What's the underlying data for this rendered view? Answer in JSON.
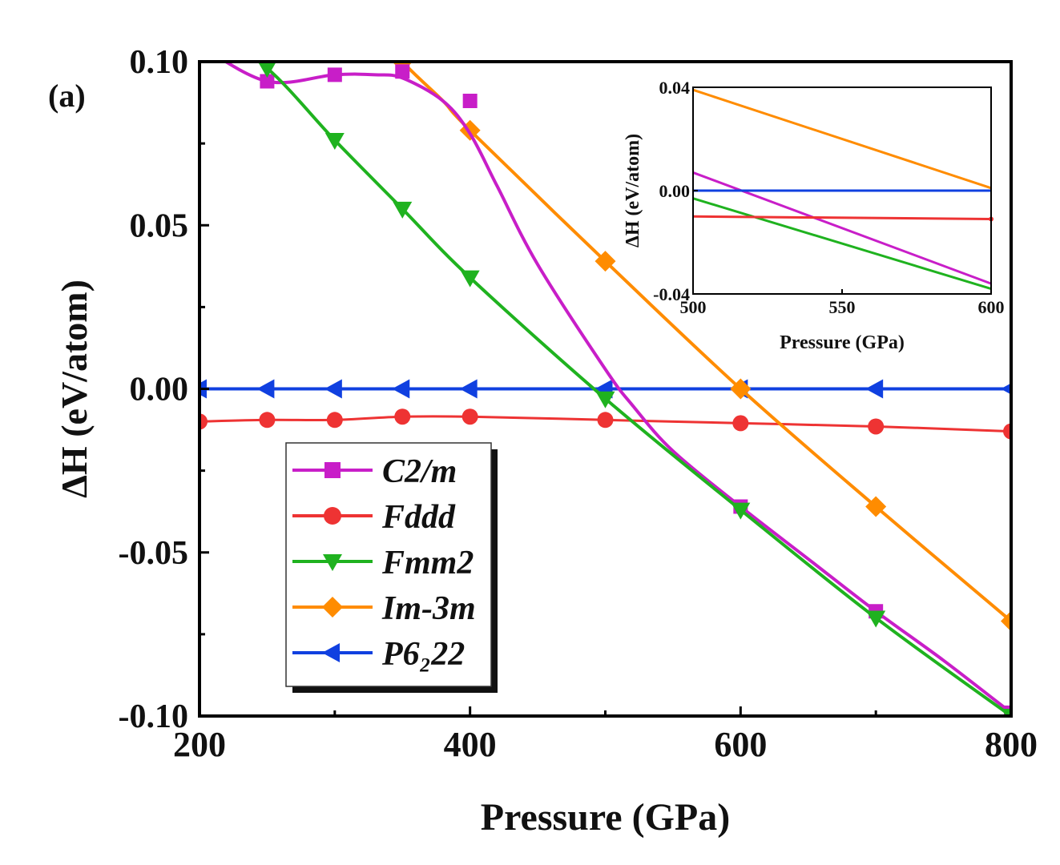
{
  "panel_label": "(a)",
  "colors": {
    "C2/m": "#c81ec8",
    "Fddd": "#ee3333",
    "Fmm2": "#1fb21f",
    "Im-3m": "#ff8c00",
    "P6222": "#1040e0"
  },
  "chart_data": [
    {
      "type": "line",
      "xlabel": "Pressure (GPa)",
      "ylabel": "ΔH (eV/atom)",
      "xlim": [
        200,
        800
      ],
      "ylim": [
        -0.1,
        0.1
      ],
      "xticks": [
        "200",
        "400",
        "600",
        "800"
      ],
      "yticks": [
        "0.10",
        "0.05",
        "0.00",
        "-0.05",
        "-0.10"
      ],
      "legend_position": "lower-left",
      "series": [
        {
          "name": "C2/m",
          "marker": "square",
          "x": [
            250,
            300,
            350,
            400,
            600,
            700,
            800
          ],
          "y": [
            0.094,
            0.096,
            0.097,
            0.088,
            -0.036,
            -0.068,
            -0.099
          ],
          "curve_x": [
            200,
            250,
            300,
            330,
            350,
            380,
            400,
            420,
            450,
            500,
            520,
            550,
            600,
            650,
            700,
            750,
            800
          ],
          "curve_y": [
            0.105,
            0.094,
            0.096,
            0.096,
            0.095,
            0.088,
            0.078,
            0.062,
            0.038,
            0.006,
            -0.005,
            -0.019,
            -0.036,
            -0.052,
            -0.068,
            -0.083,
            -0.099
          ]
        },
        {
          "name": "Fddd",
          "marker": "circle",
          "x": [
            200,
            250,
            300,
            350,
            400,
            500,
            600,
            700,
            800
          ],
          "y": [
            -0.01,
            -0.0095,
            -0.0095,
            -0.0085,
            -0.0085,
            -0.0095,
            -0.0105,
            -0.0115,
            -0.013
          ]
        },
        {
          "name": "Fmm2",
          "marker": "triangle-down",
          "x": [
            250,
            300,
            350,
            400,
            500,
            600,
            700,
            800
          ],
          "y": [
            0.098,
            0.076,
            0.055,
            0.034,
            -0.003,
            -0.037,
            -0.07,
            -0.1
          ],
          "curve_x": [
            200,
            250,
            300,
            350,
            400,
            500,
            600,
            700,
            800
          ],
          "curve_y": [
            0.112,
            0.098,
            0.076,
            0.055,
            0.034,
            -0.003,
            -0.037,
            -0.07,
            -0.1
          ]
        },
        {
          "name": "Im-3m",
          "marker": "diamond",
          "x": [
            350,
            400,
            500,
            600,
            700,
            800
          ],
          "y": [
            0.1,
            0.079,
            0.039,
            0.0,
            -0.036,
            -0.071
          ],
          "curve_x": [
            320,
            350,
            380,
            400,
            500,
            600,
            700,
            800
          ],
          "curve_y": [
            0.115,
            0.1,
            0.088,
            0.079,
            0.039,
            0.0,
            -0.036,
            -0.071
          ]
        },
        {
          "name": "P6₂22",
          "marker": "triangle-left",
          "x": [
            200,
            250,
            300,
            350,
            400,
            500,
            600,
            700,
            800
          ],
          "y": [
            0,
            0,
            0,
            0,
            0,
            0,
            0,
            0,
            0
          ]
        }
      ]
    },
    {
      "type": "line",
      "inset": true,
      "xlabel": "Pressure (GPa)",
      "ylabel": "ΔH (eV/atom)",
      "xlim": [
        500,
        600
      ],
      "ylim": [
        -0.04,
        0.04
      ],
      "xticks": [
        "500",
        "550",
        "600"
      ],
      "yticks": [
        "0.04",
        "0.00",
        "-0.04"
      ],
      "series": [
        {
          "name": "Im-3m",
          "x": [
            500,
            600
          ],
          "y": [
            0.039,
            0.001
          ]
        },
        {
          "name": "C2/m",
          "x": [
            500,
            600
          ],
          "y": [
            0.007,
            -0.036
          ]
        },
        {
          "name": "P6₂22",
          "x": [
            500,
            600
          ],
          "y": [
            0.0,
            0.0
          ]
        },
        {
          "name": "Fmm2",
          "x": [
            500,
            600
          ],
          "y": [
            -0.003,
            -0.038
          ]
        },
        {
          "name": "Fddd",
          "x": [
            500,
            600
          ],
          "y": [
            -0.01,
            -0.011
          ]
        }
      ]
    }
  ]
}
